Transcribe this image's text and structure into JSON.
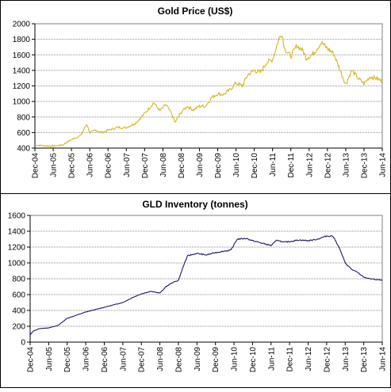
{
  "chart_data": [
    {
      "type": "line",
      "title": "Gold  Price (US$)",
      "xlabel": "",
      "ylabel": "",
      "ylim": [
        400,
        2000
      ],
      "yticks": [
        400,
        600,
        800,
        1000,
        1200,
        1400,
        1600,
        1800,
        2000
      ],
      "xticks": [
        "Dec-04",
        "Jun-05",
        "Dec-05",
        "Jun-06",
        "Dec-06",
        "Jun-07",
        "Dec-07",
        "Jun-08",
        "Dec-08",
        "Jun-09",
        "Dec-09",
        "Jun-10",
        "Dec-10",
        "Jun-11",
        "Dec-11",
        "Jun-12",
        "Dec-12",
        "Jun-13",
        "Dec-13",
        "Jun-14"
      ],
      "grid": true,
      "line_color": "#d4b621",
      "series": [
        {
          "x": [
            "Dec-04",
            "Mar-05",
            "Jun-05",
            "Sep-05",
            "Dec-05",
            "Mar-06",
            "May-06",
            "Jun-06",
            "Aug-06",
            "Oct-06",
            "Dec-06",
            "Mar-07",
            "Jun-07",
            "Sep-07",
            "Nov-07",
            "Jan-08",
            "Mar-08",
            "May-08",
            "Jul-08",
            "Sep-08",
            "Oct-08",
            "Dec-08",
            "Feb-09",
            "Apr-09",
            "Jun-09",
            "Aug-09",
            "Oct-09",
            "Dec-09",
            "Feb-10",
            "Apr-10",
            "Jun-10",
            "Aug-10",
            "Oct-10",
            "Dec-10",
            "Feb-11",
            "Apr-11",
            "Jun-11",
            "Aug-11",
            "Sep-11",
            "Oct-11",
            "Dec-11",
            "Feb-12",
            "Apr-12",
            "May-12",
            "Jul-12",
            "Oct-12",
            "Dec-12",
            "Feb-13",
            "Apr-13",
            "Jun-13",
            "Aug-13",
            "Oct-13",
            "Dec-13",
            "Feb-14",
            "Apr-14",
            "Jun-14"
          ],
          "values": [
            440,
            430,
            425,
            440,
            510,
            560,
            710,
            600,
            630,
            600,
            630,
            665,
            665,
            720,
            800,
            890,
            985,
            880,
            960,
            830,
            730,
            860,
            940,
            890,
            940,
            940,
            1050,
            1100,
            1090,
            1150,
            1240,
            1200,
            1350,
            1400,
            1370,
            1500,
            1540,
            1800,
            1880,
            1680,
            1580,
            1720,
            1650,
            1560,
            1600,
            1760,
            1680,
            1620,
            1420,
            1220,
            1400,
            1300,
            1230,
            1320,
            1300,
            1260
          ]
        }
      ]
    },
    {
      "type": "line",
      "title": "GLD Inventory (tonnes)",
      "xlabel": "",
      "ylabel": "",
      "ylim": [
        0,
        1600
      ],
      "yticks": [
        0,
        200,
        400,
        600,
        800,
        1000,
        1200,
        1400,
        1600
      ],
      "xticks": [
        "Dec-04",
        "Jun-05",
        "Dec-05",
        "Jun-06",
        "Dec-06",
        "Jun-07",
        "Dec-07",
        "Jun-08",
        "Dec-08",
        "Jun-09",
        "Dec-09",
        "Jun-10",
        "Dec-10",
        "Jun-11",
        "Dec-11",
        "Jun-12",
        "Dec-12",
        "Jun-13",
        "Dec-13",
        "Jun-14"
      ],
      "grid": true,
      "line_color": "#1a1a6e",
      "series": [
        {
          "x": [
            "Dec-04",
            "Jan-05",
            "Mar-05",
            "Jun-05",
            "Sep-05",
            "Dec-05",
            "Mar-06",
            "Jun-06",
            "Sep-06",
            "Dec-06",
            "Mar-07",
            "Jun-07",
            "Sep-07",
            "Dec-07",
            "Mar-08",
            "Jun-08",
            "Aug-08",
            "Oct-08",
            "Dec-08",
            "Feb-09",
            "Mar-09",
            "Jun-09",
            "Sep-09",
            "Dec-09",
            "Mar-10",
            "May-10",
            "Jul-10",
            "Oct-10",
            "Dec-10",
            "Mar-11",
            "Jun-11",
            "Aug-11",
            "Oct-11",
            "Dec-11",
            "Mar-12",
            "Jun-12",
            "Sep-12",
            "Dec-12",
            "Feb-13",
            "Apr-13",
            "Jun-13",
            "Aug-13",
            "Oct-13",
            "Dec-13",
            "Feb-14",
            "Apr-14",
            "Jun-14"
          ],
          "values": [
            90,
            140,
            170,
            180,
            210,
            300,
            340,
            380,
            410,
            440,
            470,
            500,
            560,
            610,
            640,
            620,
            700,
            750,
            780,
            1000,
            1090,
            1120,
            1100,
            1130,
            1150,
            1160,
            1300,
            1310,
            1280,
            1250,
            1220,
            1290,
            1260,
            1270,
            1290,
            1280,
            1300,
            1340,
            1340,
            1200,
            1000,
            920,
            880,
            820,
            800,
            790,
            780
          ]
        }
      ]
    }
  ]
}
